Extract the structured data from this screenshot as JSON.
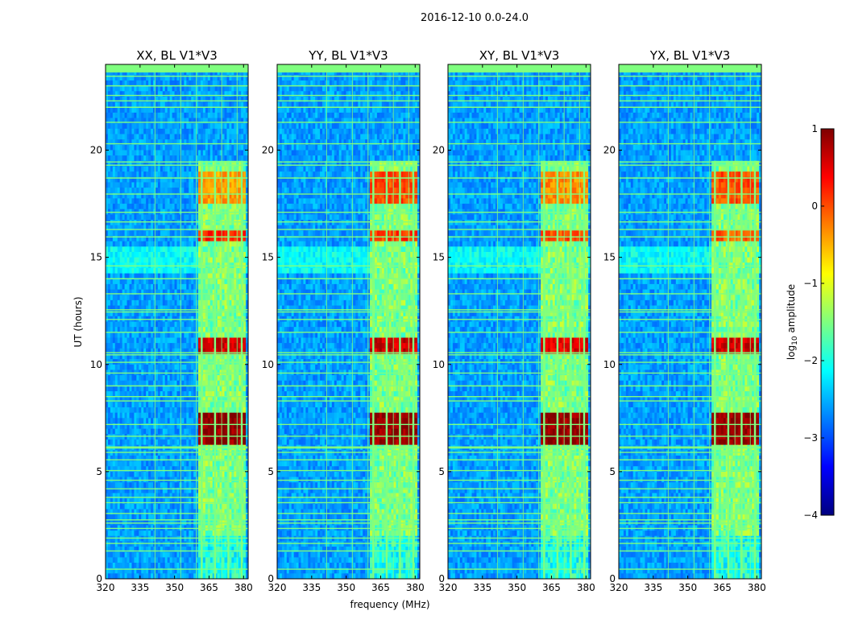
{
  "chart_data": {
    "type": "heatmap",
    "suptitle": "2016-12-10 0.0-24.0",
    "xlabel": "frequency (MHz)",
    "ylabel": "UT (hours)",
    "xlim": [
      320,
      382
    ],
    "ylim": [
      0,
      24
    ],
    "xticks": [
      "320",
      "335",
      "350",
      "365",
      "380"
    ],
    "yticks": [
      "0",
      "5",
      "10",
      "15",
      "20"
    ],
    "colorbar": {
      "label": "log10 amplitude",
      "label_main": "log",
      "label_sub": "10",
      "label_rest": " amplitude",
      "range": [
        -4,
        1
      ],
      "ticks": [
        "1",
        "0",
        "−1",
        "−2",
        "−3",
        "−4"
      ],
      "colormap": "jet",
      "colormap_stops": [
        "#00007f",
        "#0000ff",
        "#007fff",
        "#00ffff",
        "#7fff7f",
        "#ffff00",
        "#ff7f00",
        "#ff0000",
        "#7f0000"
      ]
    },
    "flag_color": "#7fff7f",
    "panels": [
      {
        "title": "XX, BL V1*V3",
        "background_level": -2.6,
        "band_mhz": [
          360,
          381
        ],
        "band_level": -1.5,
        "subband_columns_mhz": [
          361.8,
          367.6,
          373.4,
          379.2
        ],
        "strong_rfi": [
          {
            "t_start": 6.2,
            "t_end": 7.8,
            "level": 0.9
          },
          {
            "t_start": 10.6,
            "t_end": 11.2,
            "level": 0.6
          },
          {
            "t_start": 15.7,
            "t_end": 16.2,
            "level": 0.2
          },
          {
            "t_start": 17.5,
            "t_end": 19.0,
            "level": -0.4
          }
        ]
      },
      {
        "title": "YY, BL V1*V3",
        "background_level": -2.6,
        "band_mhz": [
          360,
          381
        ],
        "band_level": -1.5,
        "subband_columns_mhz": [
          361.8,
          367.6,
          373.4,
          379.2
        ],
        "strong_rfi": [
          {
            "t_start": 6.2,
            "t_end": 7.8,
            "level": 0.9
          },
          {
            "t_start": 10.6,
            "t_end": 11.2,
            "level": 0.6
          },
          {
            "t_start": 15.7,
            "t_end": 16.2,
            "level": 0.1
          },
          {
            "t_start": 17.5,
            "t_end": 19.0,
            "level": 0.0
          }
        ]
      },
      {
        "title": "XY, BL V1*V3",
        "background_level": -2.6,
        "band_mhz": [
          360,
          381
        ],
        "band_level": -1.5,
        "subband_columns_mhz": [
          361.8,
          367.6,
          373.4,
          379.2
        ],
        "strong_rfi": [
          {
            "t_start": 6.2,
            "t_end": 7.8,
            "level": 0.9
          },
          {
            "t_start": 10.6,
            "t_end": 11.2,
            "level": 0.5
          },
          {
            "t_start": 15.7,
            "t_end": 16.2,
            "level": 0.0
          },
          {
            "t_start": 17.5,
            "t_end": 19.0,
            "level": -0.3
          }
        ]
      },
      {
        "title": "YX, BL V1*V3",
        "background_level": -2.6,
        "band_mhz": [
          360,
          381
        ],
        "band_level": -1.5,
        "subband_columns_mhz": [
          361.8,
          367.6,
          373.4,
          379.2
        ],
        "strong_rfi": [
          {
            "t_start": 6.2,
            "t_end": 7.8,
            "level": 0.9
          },
          {
            "t_start": 10.6,
            "t_end": 11.2,
            "level": 0.6
          },
          {
            "t_start": 15.7,
            "t_end": 16.2,
            "level": -0.1
          },
          {
            "t_start": 17.5,
            "t_end": 19.0,
            "level": 0.0
          }
        ]
      }
    ],
    "flagged_times_hours": [
      0.45,
      1.3,
      1.65,
      1.9,
      2.35,
      2.6,
      2.75,
      3.05,
      3.55,
      3.8,
      4.2,
      4.6,
      5.05,
      5.55,
      5.9,
      6.1,
      6.15,
      6.65,
      7.2,
      8.3,
      8.5,
      9.0,
      9.6,
      10.1,
      10.45,
      10.55,
      11.5,
      12.1,
      12.45,
      12.55,
      13.3,
      14.0,
      14.6,
      15.95,
      16.3,
      16.65,
      17.1,
      17.95,
      18.7,
      19.3,
      19.45,
      20.3,
      21.3,
      22.0,
      22.3,
      22.55,
      23.0,
      23.45
    ],
    "flagged_channels_mhz": [
      341.5,
      352.7,
      359.5,
      370.5,
      377.2
    ]
  }
}
